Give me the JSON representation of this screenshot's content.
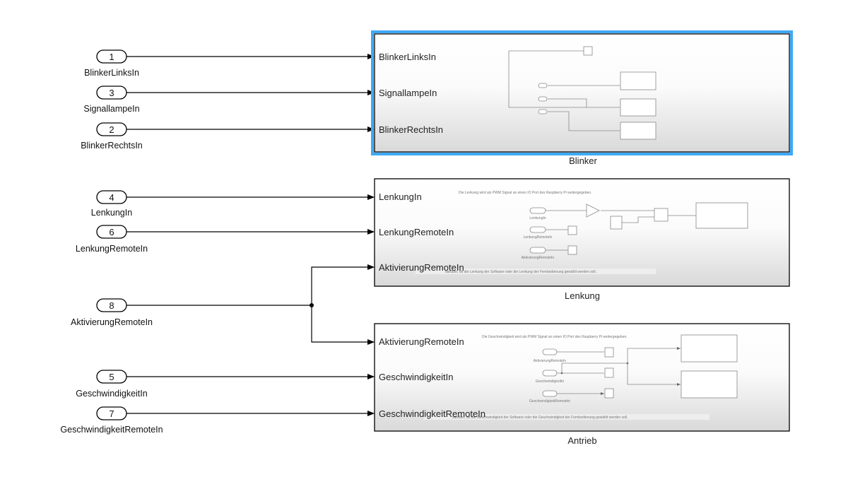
{
  "inports": [
    {
      "number": "1",
      "name": "BlinkerLinksIn"
    },
    {
      "number": "3",
      "name": "SignallampeIn"
    },
    {
      "number": "2",
      "name": "BlinkerRechtsIn"
    },
    {
      "number": "4",
      "name": "LenkungIn"
    },
    {
      "number": "6",
      "name": "LenkungRemoteIn"
    },
    {
      "number": "8",
      "name": "AktivierungRemoteIn"
    },
    {
      "number": "5",
      "name": "GeschwindigkeitIn"
    },
    {
      "number": "7",
      "name": "GeschwindigkeitRemoteIn"
    }
  ],
  "subsystems": {
    "blinker": {
      "name": "Blinker",
      "selected": true,
      "selection_color": "#3fa9f5",
      "ports": [
        "BlinkerLinksIn",
        "SignallampeIn",
        "BlinkerRechtsIn"
      ]
    },
    "lenkung": {
      "name": "Lenkung",
      "ports": [
        "LenkungIn",
        "LenkungRemoteIn",
        "AktivierungRemoteIn"
      ],
      "note_top": "Die Lenkung wird als PWM Signal an einen IO Port des Raspberry Pi weitergegeben.",
      "note_bottom": "darüber, ob die Lenkung der Software oder die Lenkung der Fernbedienung gewählt werden soll.",
      "inner_labels": [
        "LenkungIn",
        "LenkungRemoteIn",
        "AktivierungRemoteIn"
      ]
    },
    "antrieb": {
      "name": "Antrieb",
      "ports": [
        "AktivierungRemoteIn",
        "GeschwindigkeitIn",
        "GeschwindigkeitRemoteIn"
      ],
      "note_top": "Die Geschwindigkeit wird als PWM Signal an einen IO Port des Raspberry Pi weitergegeben.",
      "note_bottom": "darüber, ob die Geschwindigkeit der Software oder die Geschwindigkeit der Fernbedienung gewählt werden soll.",
      "inner_labels": [
        "AktivierungRemoteIn",
        "GeschwindigkeitIn",
        "GeschwindigkeitRemoteIn"
      ]
    }
  }
}
